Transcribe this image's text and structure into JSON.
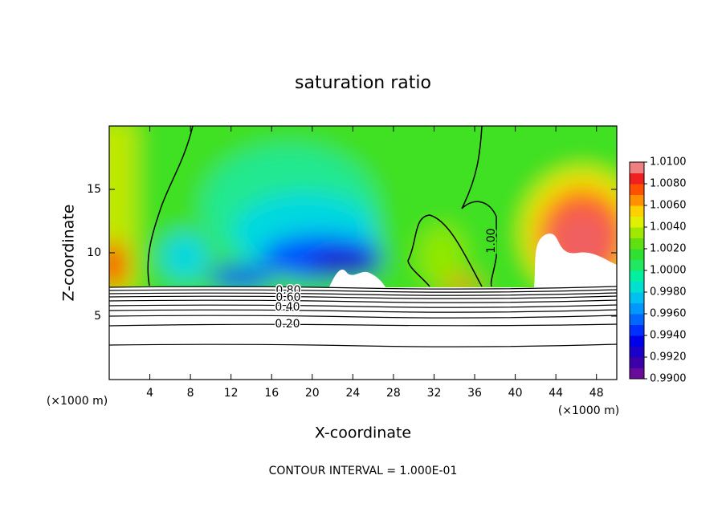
{
  "chart_data": {
    "type": "contour",
    "title": "saturation ratio",
    "x_label": "X-coordinate",
    "y_label": "Z-coordinate",
    "x_unit_left": "(×1000 m)",
    "x_unit_right": "(×1000 m)",
    "footnote": "CONTOUR INTERVAL = 1.000E-01",
    "xlim": [
      0,
      50
    ],
    "xticks": [
      4,
      8,
      12,
      16,
      20,
      24,
      28,
      32,
      36,
      40,
      44,
      48
    ],
    "ylim": [
      0,
      20
    ],
    "yticks": [
      5,
      10,
      15
    ],
    "contour_labels": [
      "1.00",
      "0.80",
      "0.60",
      "0.40",
      "0.20"
    ],
    "colorbar_lim": [
      0.99,
      1.01
    ],
    "colorbar_ticks": [
      {
        "value": 0.99,
        "label": "0.9900"
      },
      {
        "value": 0.992,
        "label": "0.9920"
      },
      {
        "value": 0.994,
        "label": "0.9940"
      },
      {
        "value": 0.996,
        "label": "0.9960"
      },
      {
        "value": 0.998,
        "label": "0.9980"
      },
      {
        "value": 1.0,
        "label": "1.0000"
      },
      {
        "value": 1.002,
        "label": "1.0020"
      },
      {
        "value": 1.004,
        "label": "1.0040"
      },
      {
        "value": 1.006,
        "label": "1.0060"
      },
      {
        "value": 1.008,
        "label": "1.0080"
      },
      {
        "value": 1.01,
        "label": "1.0100"
      }
    ],
    "colorbar_colors": [
      "#6a0a9a",
      "#3c00a8",
      "#1a00c8",
      "#0000e8",
      "#0030ff",
      "#0068ff",
      "#0098ff",
      "#00c0f0",
      "#00e0d0",
      "#00f0a0",
      "#20e860",
      "#30e030",
      "#60e010",
      "#a0e800",
      "#e0f000",
      "#ffd000",
      "#ff9000",
      "#ff5000",
      "#f02020",
      "#f08080"
    ]
  }
}
